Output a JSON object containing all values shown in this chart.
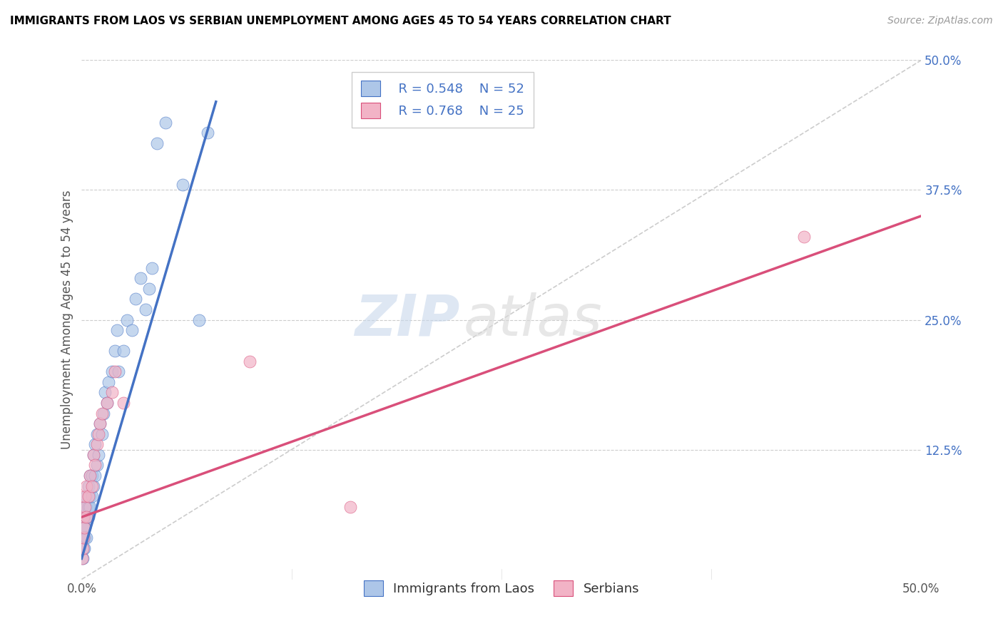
{
  "title": "IMMIGRANTS FROM LAOS VS SERBIAN UNEMPLOYMENT AMONG AGES 45 TO 54 YEARS CORRELATION CHART",
  "source": "Source: ZipAtlas.com",
  "ylabel": "Unemployment Among Ages 45 to 54 years",
  "xlim": [
    0.0,
    0.5
  ],
  "ylim": [
    0.0,
    0.5
  ],
  "xtick_labels": [
    "0.0%",
    "",
    "",
    "",
    "50.0%"
  ],
  "xtick_vals": [
    0.0,
    0.125,
    0.25,
    0.375,
    0.5
  ],
  "right_ytick_labels": [
    "50.0%",
    "37.5%",
    "25.0%",
    "12.5%"
  ],
  "right_ytick_vals": [
    0.5,
    0.375,
    0.25,
    0.125
  ],
  "legend_r1": "R = 0.548",
  "legend_n1": "N = 52",
  "legend_r2": "R = 0.768",
  "legend_n2": "N = 25",
  "color_blue": "#adc6e8",
  "color_pink": "#f2b3c6",
  "color_blue_line": "#4472c4",
  "color_pink_line": "#d94f7a",
  "color_dashed": "#c0c0c0",
  "blue_scatter_x": [
    0.0005,
    0.001,
    0.001,
    0.001,
    0.0015,
    0.0015,
    0.002,
    0.002,
    0.002,
    0.002,
    0.003,
    0.003,
    0.003,
    0.003,
    0.004,
    0.004,
    0.004,
    0.005,
    0.005,
    0.005,
    0.006,
    0.006,
    0.007,
    0.007,
    0.008,
    0.008,
    0.009,
    0.009,
    0.01,
    0.011,
    0.012,
    0.013,
    0.014,
    0.015,
    0.016,
    0.018,
    0.02,
    0.021,
    0.022,
    0.025,
    0.027,
    0.03,
    0.032,
    0.035,
    0.038,
    0.04,
    0.042,
    0.045,
    0.05,
    0.06,
    0.07,
    0.075
  ],
  "blue_scatter_y": [
    0.02,
    0.03,
    0.04,
    0.05,
    0.03,
    0.05,
    0.04,
    0.05,
    0.06,
    0.07,
    0.04,
    0.06,
    0.07,
    0.08,
    0.06,
    0.07,
    0.09,
    0.07,
    0.08,
    0.1,
    0.08,
    0.1,
    0.09,
    0.12,
    0.1,
    0.13,
    0.11,
    0.14,
    0.12,
    0.15,
    0.14,
    0.16,
    0.18,
    0.17,
    0.19,
    0.2,
    0.22,
    0.24,
    0.2,
    0.22,
    0.25,
    0.24,
    0.27,
    0.29,
    0.26,
    0.28,
    0.3,
    0.42,
    0.44,
    0.38,
    0.25,
    0.43
  ],
  "pink_scatter_x": [
    0.0003,
    0.0005,
    0.001,
    0.001,
    0.0015,
    0.002,
    0.002,
    0.003,
    0.003,
    0.004,
    0.005,
    0.006,
    0.007,
    0.008,
    0.009,
    0.01,
    0.011,
    0.012,
    0.015,
    0.018,
    0.02,
    0.025,
    0.1,
    0.16,
    0.43
  ],
  "pink_scatter_y": [
    0.02,
    0.03,
    0.04,
    0.06,
    0.05,
    0.07,
    0.08,
    0.06,
    0.09,
    0.08,
    0.1,
    0.09,
    0.12,
    0.11,
    0.13,
    0.14,
    0.15,
    0.16,
    0.17,
    0.18,
    0.2,
    0.17,
    0.21,
    0.07,
    0.33
  ],
  "blue_line_x0": 0.0,
  "blue_line_y0": 0.02,
  "blue_line_x1": 0.08,
  "blue_line_y1": 0.46,
  "pink_line_x0": 0.0,
  "pink_line_y0": 0.06,
  "pink_line_x1": 0.5,
  "pink_line_y1": 0.35
}
